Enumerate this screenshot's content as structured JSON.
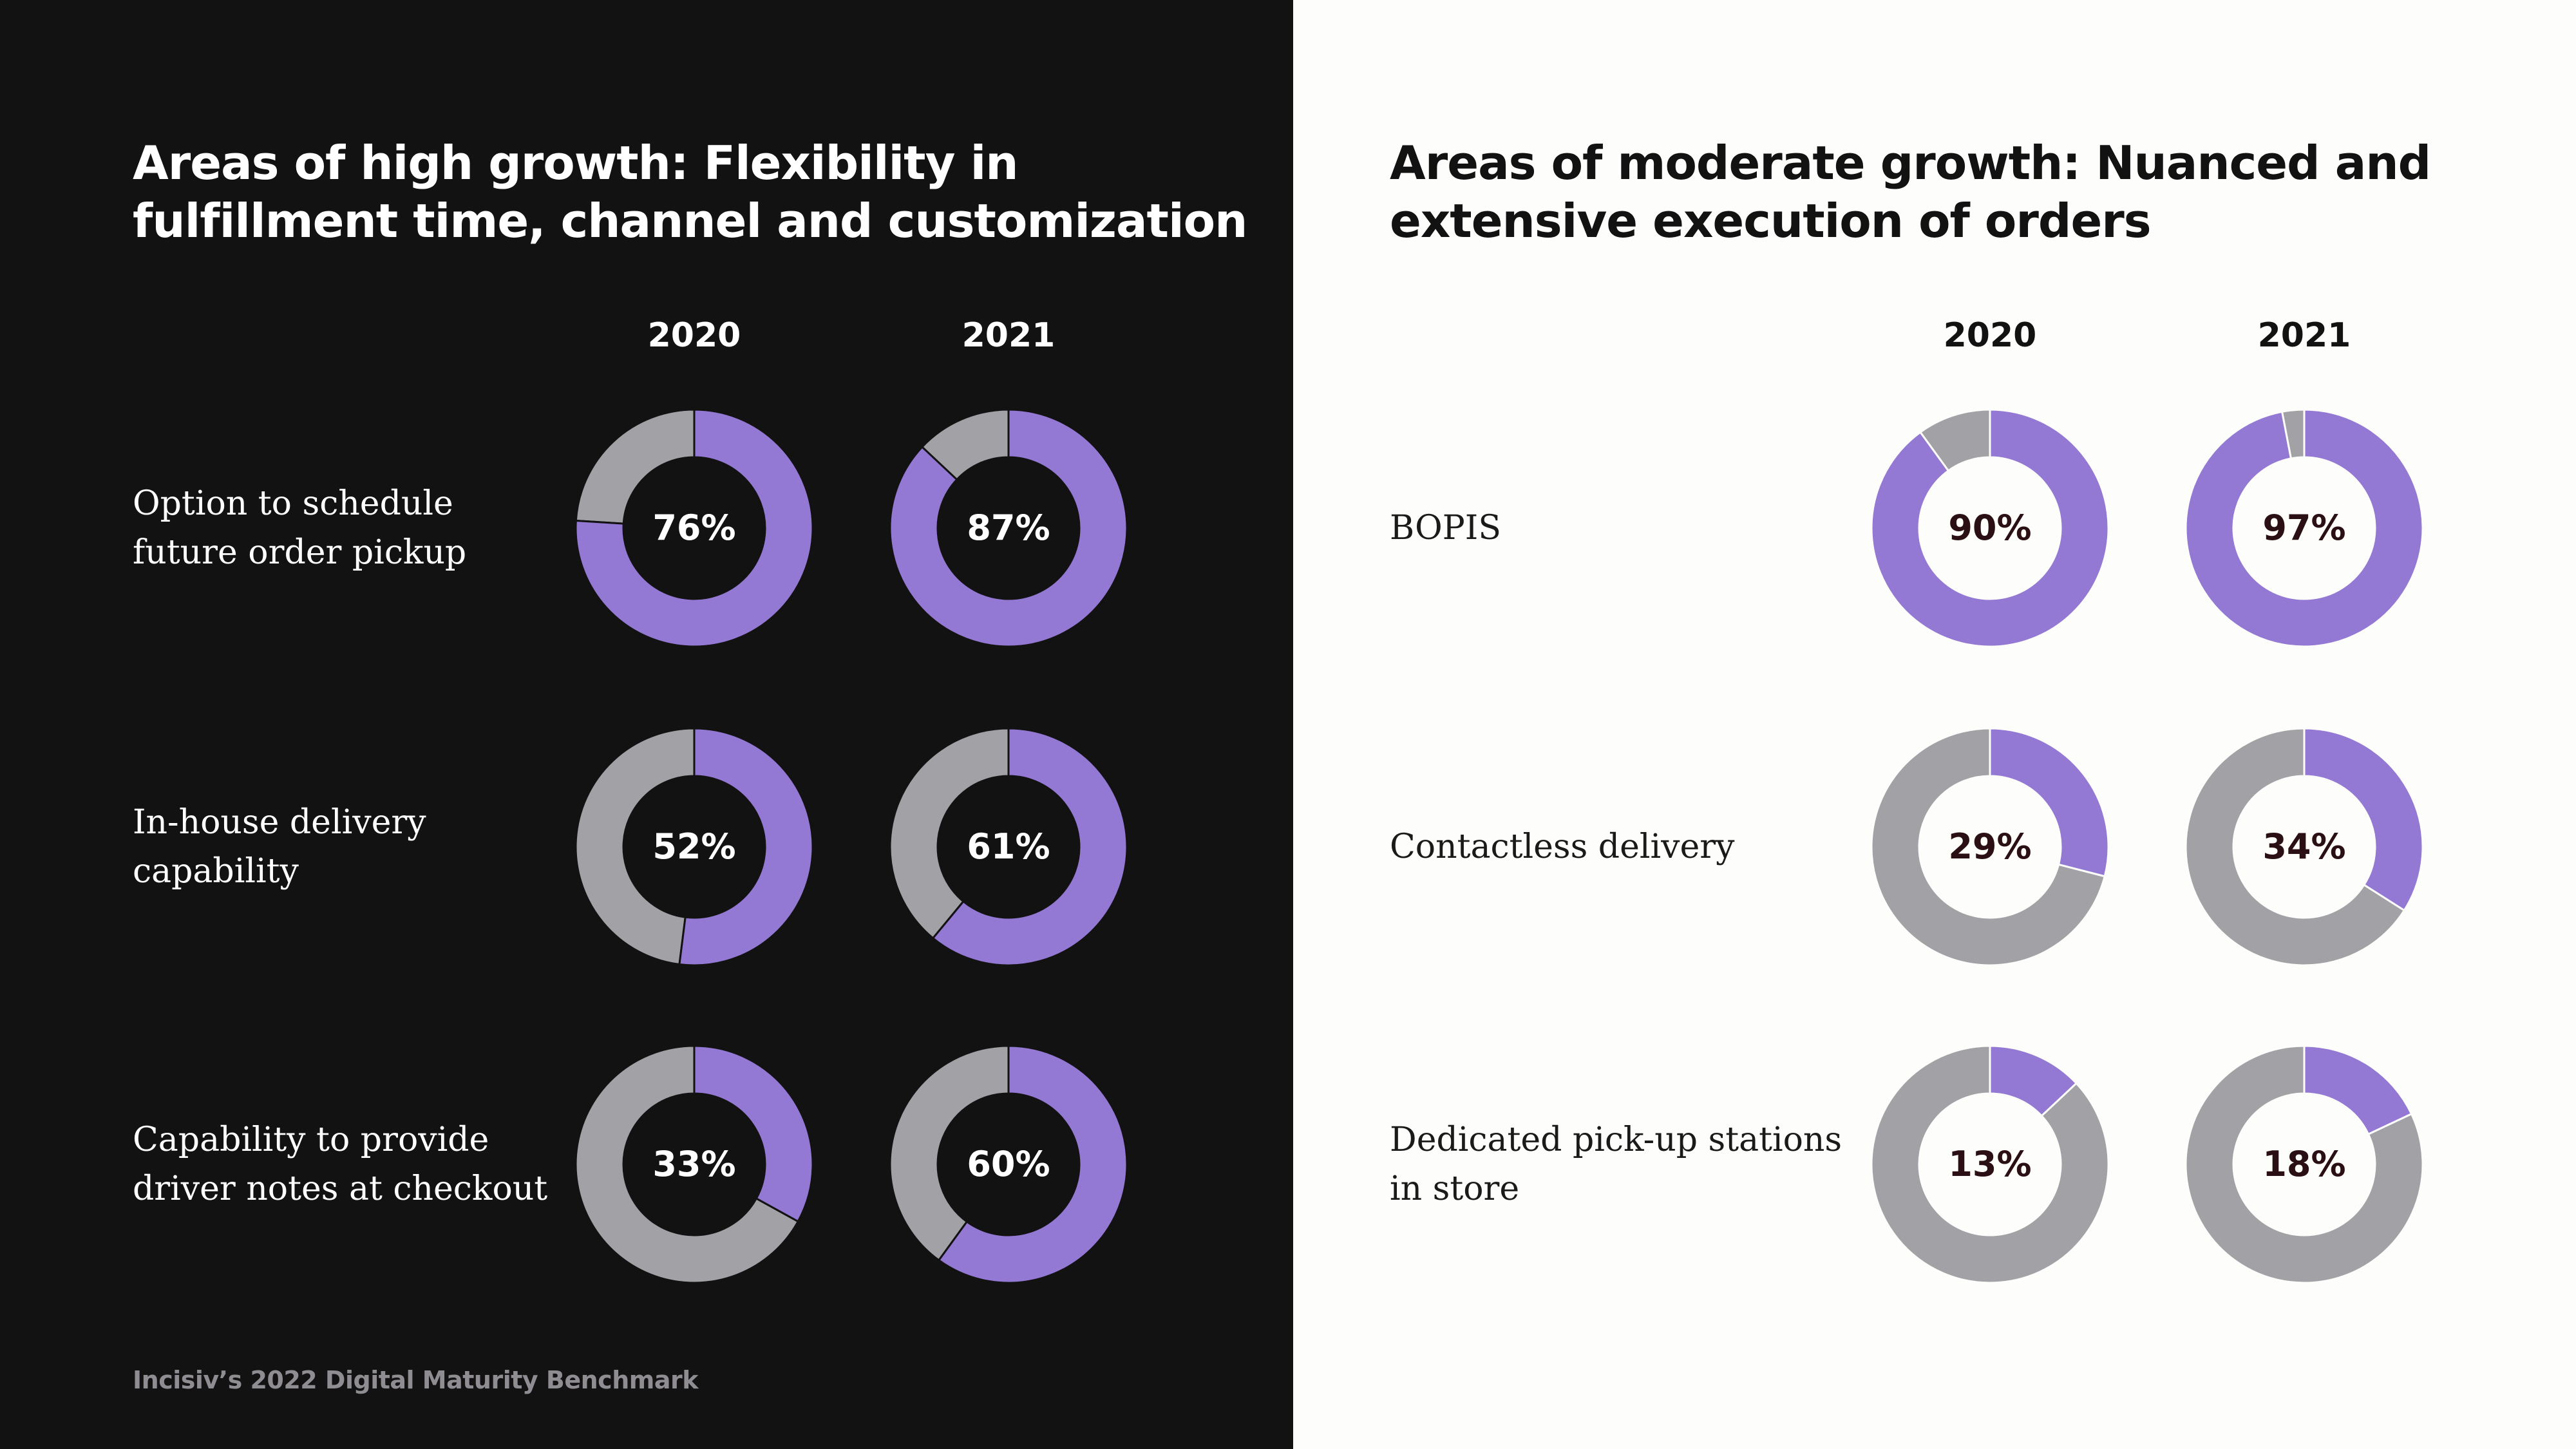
{
  "colors": {
    "highlight": "#9378d4",
    "remainder": "#a2a1a6",
    "dark_background": "#131213",
    "light_background": "#fdfdfb"
  },
  "footer": {
    "source": "Incisiv’s 2022 Digital Maturity Benchmark"
  },
  "chart_data": [
    {
      "type": "pie",
      "style": "donut-grid",
      "title": "Areas of high growth: Flexibility in fulfillment time, channel and customization",
      "columns": [
        "2020",
        "2021"
      ],
      "rows": [
        {
          "label": "Option to schedule\nfuture order pickup",
          "values": [
            76,
            87
          ],
          "display": [
            "76%",
            "87%"
          ]
        },
        {
          "label": "In-house delivery\ncapability",
          "values": [
            52,
            61
          ],
          "display": [
            "52%",
            "61%"
          ]
        },
        {
          "label": "Capability to provide\ndriver notes at checkout",
          "values": [
            33,
            60
          ],
          "display": [
            "33%",
            "60%"
          ]
        }
      ],
      "unit": "%",
      "max": 100,
      "theme": "dark"
    },
    {
      "type": "pie",
      "style": "donut-grid",
      "title": "Areas of moderate growth: Nuanced and extensive execution of orders",
      "columns": [
        "2020",
        "2021"
      ],
      "rows": [
        {
          "label": "BOPIS",
          "values": [
            90,
            97
          ],
          "display": [
            "90%",
            "97%"
          ]
        },
        {
          "label": "Contactless delivery",
          "values": [
            29,
            34
          ],
          "display": [
            "29%",
            "34%"
          ]
        },
        {
          "label": "Dedicated pick-up stations\nin store",
          "values": [
            13,
            18
          ],
          "display": [
            "13%",
            "18%"
          ]
        }
      ],
      "unit": "%",
      "max": 100,
      "theme": "light"
    }
  ]
}
